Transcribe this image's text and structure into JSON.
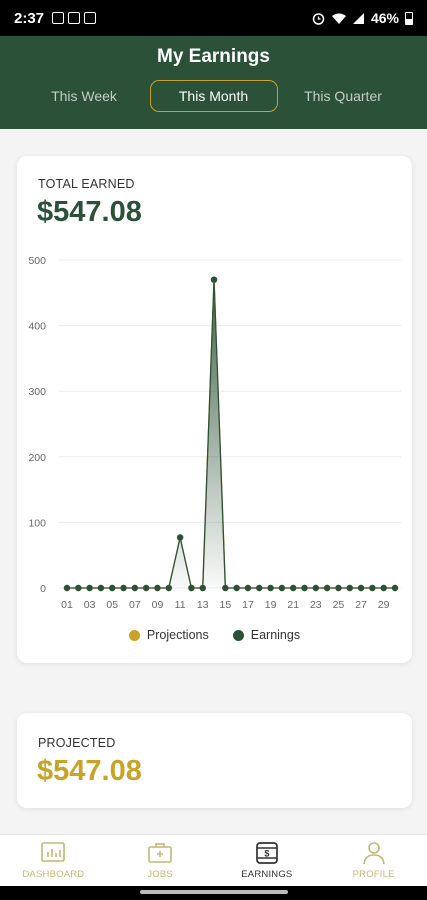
{
  "status_bar": {
    "time": "2:37",
    "battery": "46%"
  },
  "header": {
    "title": "My Earnings",
    "tabs": [
      {
        "label": "This Week",
        "active": false
      },
      {
        "label": "This Month",
        "active": true
      },
      {
        "label": "This Quarter",
        "active": false
      }
    ]
  },
  "total_card": {
    "label": "TOTAL EARNED",
    "amount": "$547.08"
  },
  "chart_data": {
    "type": "line",
    "x": [
      "01",
      "02",
      "03",
      "04",
      "05",
      "06",
      "07",
      "08",
      "09",
      "10",
      "11",
      "12",
      "13",
      "14",
      "15",
      "16",
      "17",
      "18",
      "19",
      "20",
      "21",
      "22",
      "23",
      "24",
      "25",
      "26",
      "27",
      "28",
      "29",
      "30"
    ],
    "x_tick_labels": [
      "01",
      "03",
      "05",
      "07",
      "09",
      "11",
      "13",
      "15",
      "17",
      "19",
      "21",
      "23",
      "25",
      "27",
      "29"
    ],
    "y_ticks": [
      0,
      100,
      200,
      300,
      400,
      500
    ],
    "ylim": [
      0,
      500
    ],
    "grid": true,
    "legend_position": "bottom",
    "series": [
      {
        "name": "Projections",
        "color": "#c9a227",
        "values": [
          0,
          0,
          0,
          0,
          0,
          0,
          0,
          0,
          0,
          0,
          77,
          0,
          0,
          470,
          0,
          0,
          0,
          0,
          0,
          0,
          0,
          0,
          0,
          0,
          0,
          0,
          0,
          0,
          0,
          0
        ]
      },
      {
        "name": "Earnings",
        "color": "#2b5138",
        "values": [
          0,
          0,
          0,
          0,
          0,
          0,
          0,
          0,
          0,
          0,
          77,
          0,
          0,
          470,
          0,
          0,
          0,
          0,
          0,
          0,
          0,
          0,
          0,
          0,
          0,
          0,
          0,
          0,
          0,
          0
        ]
      }
    ]
  },
  "projected_card": {
    "label": "PROJECTED",
    "amount": "$547.08"
  },
  "bottom_nav": {
    "items": [
      {
        "label": "DASHBOARD",
        "icon": "chart-board-icon",
        "active": false
      },
      {
        "label": "JOBS",
        "icon": "briefcase-icon",
        "active": false
      },
      {
        "label": "EARNINGS",
        "icon": "wallet-icon",
        "active": true
      },
      {
        "label": "PROFILE",
        "icon": "person-icon",
        "active": false
      }
    ]
  },
  "colors": {
    "brand_green": "#2b5138",
    "accent_gold": "#c9a227"
  }
}
